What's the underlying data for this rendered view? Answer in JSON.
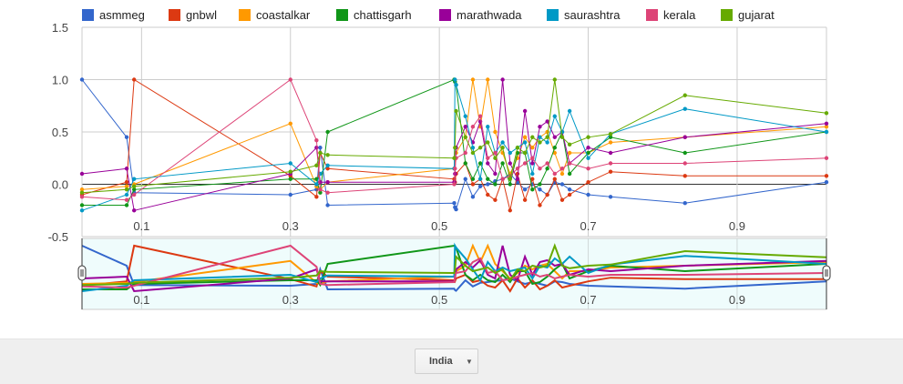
{
  "chart_data": {
    "type": "line",
    "title": "",
    "xlabel": "",
    "ylabel": "",
    "xlim": [
      0.02,
      1.02
    ],
    "ylim": [
      -0.5,
      1.5
    ],
    "y_ticks": [
      "1.5",
      "1.0",
      "0.5",
      "0.0",
      "-0.5"
    ],
    "x_ticks": [
      "0.1",
      "0.3",
      "0.5",
      "0.7",
      "0.9"
    ],
    "legend_position": "top",
    "grid": true,
    "range_selector": true,
    "x": [
      0.02,
      0.08,
      0.09,
      0.3,
      0.335,
      0.34,
      0.35,
      0.52,
      0.521,
      0.5225,
      0.535,
      0.545,
      0.555,
      0.565,
      0.575,
      0.585,
      0.595,
      0.605,
      0.615,
      0.625,
      0.635,
      0.645,
      0.655,
      0.665,
      0.675,
      0.7,
      0.73,
      0.83,
      1.02
    ],
    "series": [
      {
        "name": "asmmeg",
        "color": "#3366cc",
        "values": [
          1.0,
          0.45,
          -0.08,
          -0.1,
          -0.05,
          0.35,
          -0.2,
          -0.18,
          -0.22,
          -0.24,
          0.05,
          -0.12,
          -0.02,
          0.0,
          0.03,
          0.05,
          0.1,
          0.02,
          -0.05,
          0.0,
          -0.05,
          -0.1,
          0.02,
          0.0,
          -0.05,
          -0.1,
          -0.12,
          -0.18,
          0.02
        ]
      },
      {
        "name": "gnbwl",
        "color": "#dc3912",
        "values": [
          -0.1,
          0.02,
          1.0,
          0.08,
          -0.12,
          0.3,
          0.15,
          0.05,
          0.02,
          0.1,
          0.2,
          0.0,
          0.05,
          -0.1,
          -0.15,
          0.05,
          -0.25,
          0.1,
          -0.15,
          0.05,
          -0.2,
          -0.1,
          0.05,
          -0.15,
          -0.1,
          0.02,
          0.12,
          0.08,
          0.08
        ]
      },
      {
        "name": "coastalkar",
        "color": "#ff9900",
        "values": [
          -0.05,
          -0.02,
          0.0,
          0.58,
          -0.02,
          -0.05,
          0.02,
          0.15,
          0.25,
          0.3,
          0.45,
          1.0,
          0.55,
          1.0,
          0.5,
          0.3,
          0.1,
          0.25,
          0.45,
          0.35,
          0.45,
          0.5,
          0.3,
          0.1,
          0.3,
          0.3,
          0.4,
          0.45,
          0.55
        ]
      },
      {
        "name": "chattisgarh",
        "color": "#109618",
        "values": [
          -0.2,
          -0.2,
          -0.05,
          0.05,
          0.05,
          -0.08,
          0.5,
          1.0,
          0.98,
          0.95,
          0.2,
          0.05,
          0.2,
          0.05,
          0.0,
          0.2,
          0.0,
          0.3,
          0.3,
          -0.05,
          0.0,
          0.15,
          0.35,
          0.5,
          0.1,
          0.3,
          0.45,
          0.3,
          0.5
        ]
      },
      {
        "name": "marathwada",
        "color": "#990099",
        "values": [
          0.1,
          0.15,
          -0.25,
          0.1,
          0.35,
          0.02,
          0.02,
          0.02,
          0.1,
          0.35,
          0.55,
          0.4,
          0.6,
          0.2,
          0.1,
          1.0,
          0.2,
          0.05,
          0.7,
          0.2,
          0.55,
          0.6,
          0.45,
          0.5,
          0.2,
          0.35,
          0.3,
          0.45,
          0.58
        ]
      },
      {
        "name": "saurashtra",
        "color": "#0099c6",
        "values": [
          -0.25,
          -0.1,
          0.05,
          0.2,
          0.0,
          0.1,
          0.18,
          0.15,
          1.0,
          0.95,
          0.65,
          0.35,
          0.05,
          0.55,
          0.3,
          0.4,
          0.3,
          0.35,
          0.4,
          0.1,
          0.45,
          0.4,
          0.65,
          0.5,
          0.7,
          0.25,
          0.48,
          0.72,
          0.5
        ]
      },
      {
        "name": "kerala",
        "color": "#dd4477",
        "values": [
          -0.12,
          -0.15,
          -0.1,
          1.0,
          0.42,
          -0.05,
          -0.08,
          0.0,
          0.15,
          0.25,
          0.3,
          0.55,
          0.65,
          0.25,
          0.3,
          0.05,
          0.08,
          0.15,
          0.2,
          0.25,
          0.15,
          0.2,
          0.1,
          0.15,
          0.2,
          0.15,
          0.2,
          0.2,
          0.25
        ]
      },
      {
        "name": "gujarat",
        "color": "#66aa00",
        "values": [
          -0.08,
          -0.05,
          -0.02,
          0.12,
          0.18,
          0.3,
          0.28,
          0.25,
          0.35,
          0.7,
          0.45,
          0.3,
          0.35,
          0.4,
          0.25,
          0.35,
          0.05,
          0.35,
          0.3,
          0.45,
          0.4,
          0.45,
          1.0,
          0.45,
          0.38,
          0.45,
          0.48,
          0.85,
          0.68
        ]
      }
    ]
  },
  "controls": {
    "filter_value": "India"
  }
}
